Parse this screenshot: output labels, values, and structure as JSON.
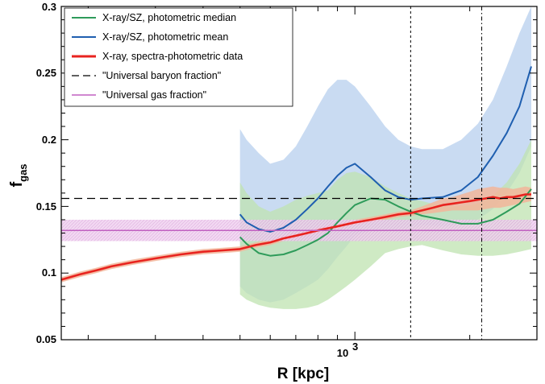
{
  "chart_data": {
    "type": "line",
    "title": "",
    "xlabel": "R [kpc]",
    "ylabel_main": "f",
    "ylabel_sub": "gas",
    "x_scale": "log",
    "xlim": [
      170,
      3000
    ],
    "ylim": [
      0.05,
      0.3
    ],
    "x_ticks": [
      {
        "value": 1000,
        "base": "10",
        "exp": "3"
      }
    ],
    "y_ticks": [
      {
        "value": 0.05,
        "label": "0.05"
      },
      {
        "value": 0.1,
        "label": "0.1"
      },
      {
        "value": 0.15,
        "label": "0.15"
      },
      {
        "value": 0.2,
        "label": "0.2"
      },
      {
        "value": 0.25,
        "label": "0.25"
      },
      {
        "value": 0.3,
        "label": "0.3"
      }
    ],
    "legend_position": "top-left",
    "series": [
      {
        "name": "X-ray/SZ, photometric median",
        "color": "#2e9b5a",
        "band_color": "#bfe3b0",
        "x": [
          500,
          520,
          560,
          600,
          650,
          700,
          750,
          800,
          850,
          900,
          950,
          1000,
          1100,
          1200,
          1300,
          1400,
          1500,
          1700,
          1900,
          2100,
          2300,
          2500,
          2700,
          2900
        ],
        "y": [
          0.127,
          0.122,
          0.115,
          0.113,
          0.114,
          0.117,
          0.121,
          0.125,
          0.13,
          0.138,
          0.145,
          0.151,
          0.156,
          0.155,
          0.15,
          0.146,
          0.143,
          0.14,
          0.137,
          0.137,
          0.14,
          0.146,
          0.152,
          0.163
        ],
        "band_lower": [
          0.084,
          0.08,
          0.076,
          0.074,
          0.073,
          0.073,
          0.074,
          0.076,
          0.08,
          0.085,
          0.09,
          0.095,
          0.105,
          0.115,
          0.118,
          0.12,
          0.121,
          0.117,
          0.114,
          0.113,
          0.113,
          0.114,
          0.116,
          0.118
        ],
        "band_upper": [
          0.168,
          0.16,
          0.15,
          0.146,
          0.15,
          0.155,
          0.158,
          0.16,
          0.162,
          0.17,
          0.175,
          0.176,
          0.172,
          0.165,
          0.16,
          0.156,
          0.154,
          0.15,
          0.15,
          0.152,
          0.158,
          0.168,
          0.182,
          0.2
        ]
      },
      {
        "name": "X-ray/SZ, photometric mean",
        "color": "#1f5fb0",
        "band_color": "#b7cfee",
        "x": [
          500,
          520,
          560,
          600,
          650,
          700,
          750,
          800,
          850,
          900,
          950,
          1000,
          1100,
          1200,
          1300,
          1400,
          1500,
          1700,
          1900,
          2100,
          2300,
          2500,
          2700,
          2900
        ],
        "y": [
          0.144,
          0.138,
          0.133,
          0.131,
          0.134,
          0.14,
          0.148,
          0.156,
          0.165,
          0.173,
          0.179,
          0.182,
          0.172,
          0.162,
          0.157,
          0.155,
          0.156,
          0.157,
          0.162,
          0.172,
          0.188,
          0.205,
          0.225,
          0.255
        ],
        "band_lower": [
          0.09,
          0.085,
          0.08,
          0.078,
          0.08,
          0.085,
          0.09,
          0.095,
          0.103,
          0.112,
          0.12,
          0.128,
          0.132,
          0.132,
          0.133,
          0.134,
          0.136,
          0.135,
          0.136,
          0.14,
          0.148,
          0.16,
          0.175,
          0.195
        ],
        "band_upper": [
          0.208,
          0.2,
          0.19,
          0.182,
          0.185,
          0.195,
          0.21,
          0.225,
          0.238,
          0.245,
          0.245,
          0.24,
          0.225,
          0.21,
          0.2,
          0.195,
          0.193,
          0.193,
          0.2,
          0.212,
          0.23,
          0.255,
          0.28,
          0.3
        ]
      },
      {
        "name": "X-ray, spectra-photometric data",
        "color": "#e8231f",
        "band_color": "#f2b59a",
        "x": [
          170,
          190,
          210,
          230,
          260,
          300,
          350,
          400,
          450,
          500,
          550,
          600,
          650,
          700,
          750,
          800,
          900,
          1000,
          1100,
          1200,
          1300,
          1400,
          1500,
          1600,
          1700,
          1800,
          1900,
          2000,
          2100,
          2200,
          2300,
          2400,
          2500,
          2600,
          2700,
          2800,
          2900
        ],
        "y": [
          0.095,
          0.099,
          0.102,
          0.105,
          0.108,
          0.111,
          0.114,
          0.116,
          0.117,
          0.118,
          0.121,
          0.123,
          0.126,
          0.128,
          0.13,
          0.132,
          0.135,
          0.138,
          0.14,
          0.142,
          0.144,
          0.145,
          0.147,
          0.149,
          0.151,
          0.152,
          0.153,
          0.154,
          0.155,
          0.156,
          0.157,
          0.156,
          0.157,
          0.157,
          0.158,
          0.159,
          0.159
        ],
        "band_lower": [
          0.093,
          0.097,
          0.1,
          0.103,
          0.106,
          0.109,
          0.112,
          0.114,
          0.115,
          0.116,
          0.119,
          0.121,
          0.124,
          0.126,
          0.128,
          0.13,
          0.133,
          0.136,
          0.138,
          0.14,
          0.142,
          0.143,
          0.144,
          0.145,
          0.146,
          0.147,
          0.147,
          0.147,
          0.147,
          0.148,
          0.149,
          0.149,
          0.15,
          0.151,
          0.152,
          0.153,
          0.154
        ],
        "band_upper": [
          0.097,
          0.101,
          0.104,
          0.107,
          0.11,
          0.113,
          0.116,
          0.118,
          0.119,
          0.12,
          0.123,
          0.125,
          0.128,
          0.13,
          0.132,
          0.134,
          0.137,
          0.14,
          0.142,
          0.144,
          0.146,
          0.147,
          0.15,
          0.153,
          0.156,
          0.157,
          0.159,
          0.161,
          0.163,
          0.164,
          0.165,
          0.164,
          0.164,
          0.163,
          0.164,
          0.165,
          0.164
        ]
      },
      {
        "name": "\"Universal baryon fraction\"",
        "color": "#000000",
        "style": "dashed",
        "y_const": 0.156
      },
      {
        "name": "\"Universal gas fraction\"",
        "color": "#c060c0",
        "band_color": "#e9c2e9",
        "y_const": 0.132,
        "band": [
          0.124,
          0.14
        ]
      }
    ],
    "vertical_lines": [
      {
        "x": 1400,
        "style": "dotted"
      },
      {
        "x": 2150,
        "style": "dashdot"
      }
    ]
  }
}
